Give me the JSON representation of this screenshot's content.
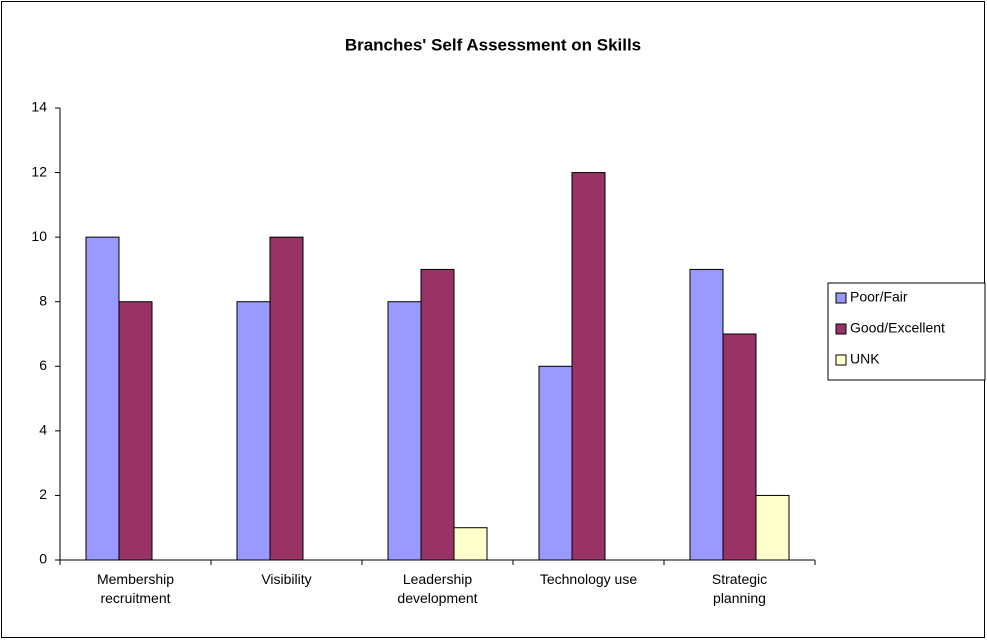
{
  "chart_data": {
    "type": "bar",
    "title": "Branches' Self Assessment on Skills",
    "categories": [
      "Membership recruitment",
      "Visibility",
      "Leadership development",
      "Technology use",
      "Strategic planning"
    ],
    "series": [
      {
        "name": "Poor/Fair",
        "color": "#9999ff",
        "values": [
          10,
          8,
          8,
          6,
          9
        ]
      },
      {
        "name": "Good/Excellent",
        "color": "#993366",
        "values": [
          8,
          10,
          9,
          12,
          7
        ]
      },
      {
        "name": "UNK",
        "color": "#ffffcc",
        "values": [
          null,
          null,
          1,
          null,
          2
        ]
      }
    ],
    "ylim": [
      0,
      14
    ],
    "yticks": [
      0,
      2,
      4,
      6,
      8,
      10,
      12,
      14
    ],
    "grid": false,
    "legend": "right"
  }
}
